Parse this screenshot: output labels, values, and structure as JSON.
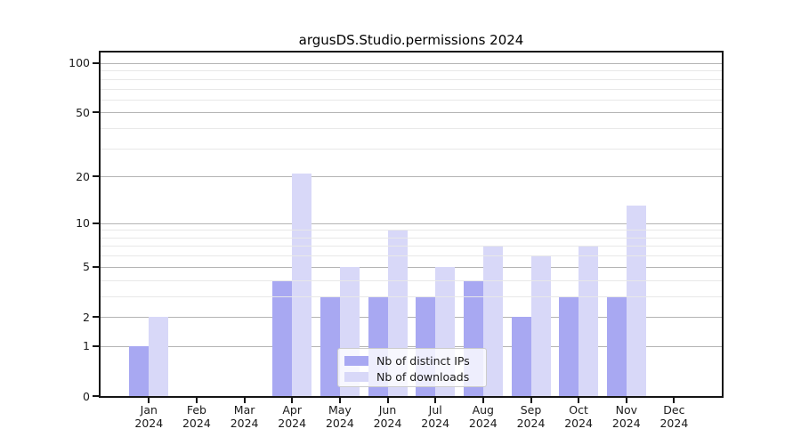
{
  "chart_data": {
    "type": "bar",
    "title": "argusDS.Studio.permissions 2024",
    "categories": [
      {
        "month": "Jan",
        "year": "2024"
      },
      {
        "month": "Feb",
        "year": "2024"
      },
      {
        "month": "Mar",
        "year": "2024"
      },
      {
        "month": "Apr",
        "year": "2024"
      },
      {
        "month": "May",
        "year": "2024"
      },
      {
        "month": "Jun",
        "year": "2024"
      },
      {
        "month": "Jul",
        "year": "2024"
      },
      {
        "month": "Aug",
        "year": "2024"
      },
      {
        "month": "Sep",
        "year": "2024"
      },
      {
        "month": "Oct",
        "year": "2024"
      },
      {
        "month": "Nov",
        "year": "2024"
      },
      {
        "month": "Dec",
        "year": "2024"
      }
    ],
    "series": [
      {
        "name": "Nb of distinct IPs",
        "color": "#a8a8f2",
        "values": [
          1,
          0,
          0,
          4,
          3,
          3,
          3,
          4,
          2,
          3,
          3,
          0
        ]
      },
      {
        "name": "Nb of downloads",
        "color": "#d8d8f8",
        "values": [
          2,
          0,
          0,
          21,
          5,
          9,
          5,
          7,
          6,
          7,
          13,
          0
        ]
      }
    ],
    "yscale": "log10(1+x)",
    "yticks": [
      0,
      1,
      2,
      5,
      10,
      20,
      50,
      100
    ],
    "yticks_minor": [
      3,
      4,
      6,
      7,
      8,
      9,
      30,
      40,
      60,
      70,
      80,
      90
    ],
    "ylim": [
      0,
      116
    ],
    "xlabel": "",
    "ylabel": "",
    "grid": true,
    "legend_position": "lower center (inside plot)"
  },
  "colors": {
    "bar_distinct_ips": "#a8a8f2",
    "bar_downloads": "#d8d8f8",
    "grid_major": "#b4b4b4",
    "grid_minor": "#e8e8e8",
    "axis": "#151515",
    "background": "#ffffff"
  }
}
